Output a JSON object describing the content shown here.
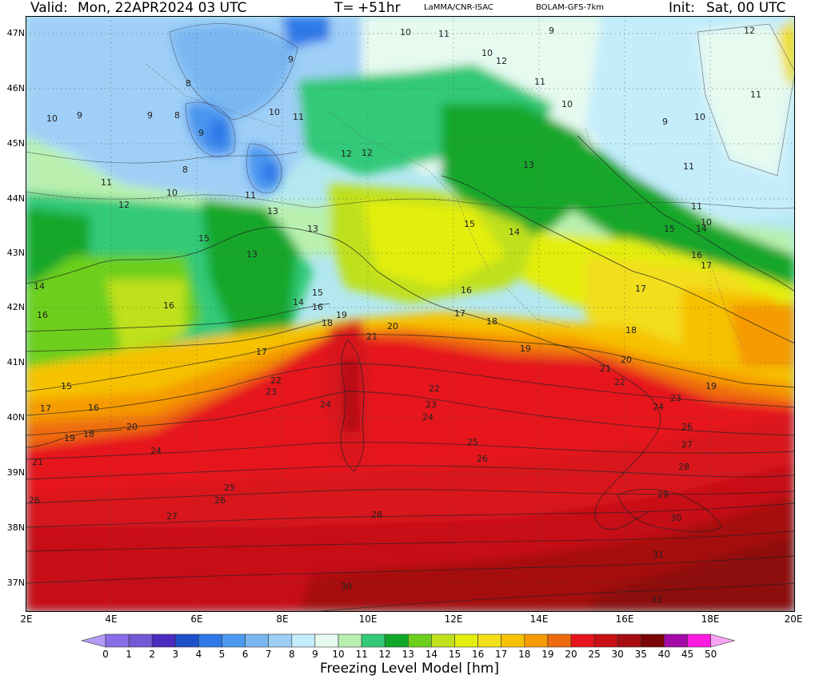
{
  "header": {
    "valid_label": "Valid:",
    "valid_value": "Mon, 22APR2024   03 UTC",
    "t_label": "T=",
    "t_value": "+51hr",
    "source": "LaMMA/CNR-ISAC",
    "model": "BOLAM-GFS-7km",
    "init_label": "Init:",
    "init_value": "Sat, 00 UTC"
  },
  "map": {
    "lat_labels": [
      "47N",
      "46N",
      "45N",
      "44N",
      "43N",
      "42N",
      "41N",
      "40N",
      "39N",
      "38N",
      "37N"
    ],
    "lon_labels": [
      "2E",
      "4E",
      "6E",
      "8E",
      "10E",
      "12E",
      "14E",
      "16E",
      "18E",
      "20E"
    ],
    "contour_labels": [
      "8",
      "9",
      "10",
      "11",
      "12",
      "13",
      "14",
      "15",
      "16",
      "17",
      "18",
      "19",
      "20",
      "21",
      "22",
      "23",
      "24",
      "25",
      "26",
      "27",
      "28",
      "29",
      "30",
      "31",
      "32"
    ],
    "palette": {
      "water_cold": "#a4d4f4",
      "green_dark": "#13a323",
      "green_mid": "#2ec44a",
      "yellow": "#e8e60a",
      "orange": "#f5a800",
      "red": "#e8161a",
      "dark_red": "#9e0c0c"
    }
  },
  "colorbar": {
    "title": "Freezing Level Model [hm]",
    "labels": [
      "0",
      "1",
      "2",
      "3",
      "4",
      "5",
      "6",
      "7",
      "8",
      "9",
      "10",
      "11",
      "12",
      "13",
      "14",
      "15",
      "16",
      "17",
      "18",
      "19",
      "20",
      "25",
      "30",
      "35",
      "40",
      "45",
      "50"
    ],
    "colors": [
      "#b49cf8",
      "#8a6ee8",
      "#7259d6",
      "#4b2cbf",
      "#1d4fc9",
      "#2d79e8",
      "#4b98f0",
      "#7ab7f2",
      "#9fcff7",
      "#c4ecfb",
      "#e6faf0",
      "#b9f0b0",
      "#33c978",
      "#12a72a",
      "#6ccf1b",
      "#bfe01a",
      "#e3ee0d",
      "#f2de1a",
      "#f6c200",
      "#f59a00",
      "#ee6a0d",
      "#e6151b",
      "#c70f14",
      "#a60c10",
      "#7a0506",
      "#a40aa6",
      "#ff1adf",
      "#f7a3f2"
    ]
  }
}
